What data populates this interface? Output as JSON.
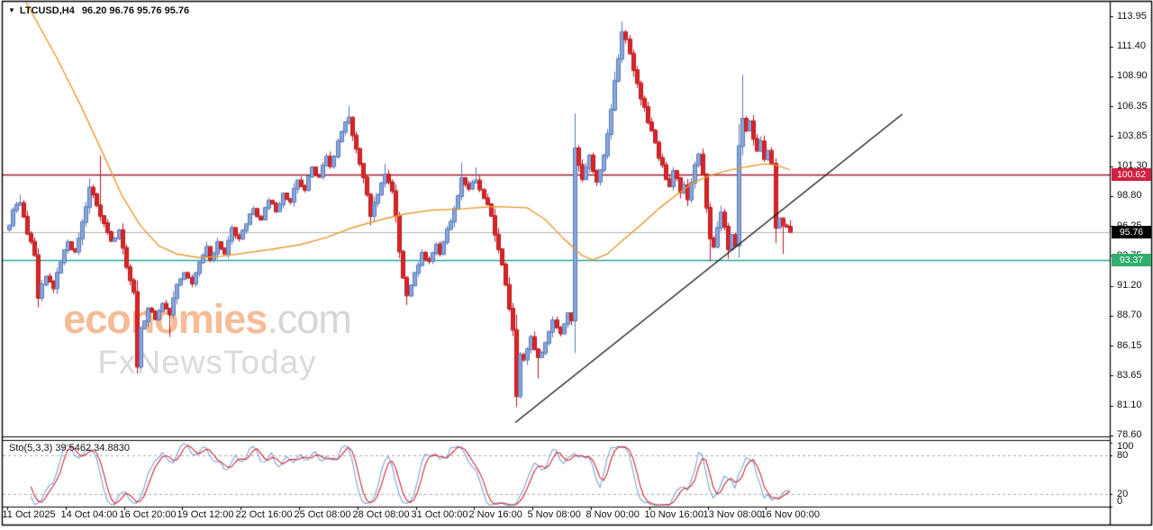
{
  "header": {
    "symbol": "LTCUSD,H4",
    "ohlc": "96.20 96.76 95.76 95.76"
  },
  "watermark": {
    "brand": "economies",
    "domain": ".com",
    "subbrand": "FxNewsToday"
  },
  "chart_data": {
    "type": "candlestick",
    "symbol": "LTCUSD",
    "timeframe": "H4",
    "title": "LTCUSD,H4 96.20 96.76 95.76 95.76",
    "last_bar_ohlc": {
      "open": 96.2,
      "high": 96.76,
      "low": 95.76,
      "close": 95.76
    },
    "bar_count": 215,
    "bars_per_time_tick": 16,
    "price_axis_ticks": [
      113.95,
      111.4,
      108.9,
      106.35,
      103.85,
      101.3,
      98.8,
      96.25,
      93.75,
      91.2,
      88.7,
      86.15,
      83.65,
      81.1,
      78.6
    ],
    "time_axis_ticks": [
      "11 Oct 2025",
      "14 Oct 04:00",
      "16 Oct 20:00",
      "19 Oct 12:00",
      "22 Oct 16:00",
      "25 Oct 08:00",
      "28 Oct 08:00",
      "31 Oct 00:00",
      "2 Nov 16:00",
      "5 Nov 08:00",
      "8 Nov 00:00",
      "10 Nov 16:00",
      "13 Nov 08:00",
      "16 Nov 00:00"
    ],
    "horizontal_levels": [
      {
        "price": 100.62,
        "role": "resistance",
        "line_color": "#9b1b32",
        "badge_color": "#d0223f"
      },
      {
        "price": 95.76,
        "role": "current-price",
        "line_color": "#b5b5b5",
        "badge_color": "#000000"
      },
      {
        "price": 93.37,
        "role": "support",
        "line_color": "#2ba79a",
        "badge_color": "#2fae6e"
      }
    ],
    "trendline": {
      "type": "ascending-support",
      "from_bar": 138.8,
      "from_price": 79.7,
      "to_bar": 244.9,
      "to_price": 105.7,
      "color": "#141414"
    },
    "moving_average": {
      "color": "#e79a33",
      "anchors": [
        [
          4,
          115.5
        ],
        [
          13,
          110.5
        ],
        [
          20,
          106.2
        ],
        [
          26,
          102.2
        ],
        [
          31,
          98.8
        ],
        [
          36,
          96.3
        ],
        [
          41,
          94.6
        ],
        [
          46,
          93.9
        ],
        [
          52,
          93.6
        ],
        [
          58,
          93.7
        ],
        [
          65,
          94.0
        ],
        [
          72,
          94.3
        ],
        [
          80,
          94.7
        ],
        [
          87,
          95.3
        ],
        [
          94,
          96.1
        ],
        [
          102,
          96.8
        ],
        [
          109,
          97.3
        ],
        [
          116,
          97.6
        ],
        [
          124,
          97.7
        ],
        [
          133,
          97.9
        ],
        [
          142,
          97.8
        ],
        [
          147,
          96.8
        ],
        [
          152,
          95.2
        ],
        [
          157,
          93.8
        ],
        [
          160,
          93.4
        ],
        [
          164,
          93.9
        ],
        [
          168,
          95.0
        ],
        [
          173,
          96.3
        ],
        [
          178,
          97.7
        ],
        [
          183,
          98.9
        ],
        [
          188,
          100.0
        ],
        [
          193,
          100.6
        ],
        [
          198,
          101.0
        ],
        [
          203,
          101.3
        ],
        [
          207,
          101.5
        ],
        [
          210,
          101.4
        ],
        [
          214,
          101.0
        ]
      ]
    },
    "candles": {
      "up_color": "#87a7da",
      "up_border": "#5878b8",
      "down_color": "#de2326",
      "down_border": "#b51b20",
      "close_anchors": [
        [
          0,
          96.3
        ],
        [
          1,
          97.6
        ],
        [
          3,
          98.2
        ],
        [
          5,
          95.6
        ],
        [
          7,
          93.8
        ],
        [
          8,
          90.2
        ],
        [
          10,
          92.0
        ],
        [
          12,
          91.0
        ],
        [
          14,
          93.2
        ],
        [
          16,
          94.9
        ],
        [
          18,
          94.1
        ],
        [
          20,
          96.6
        ],
        [
          22,
          99.5
        ],
        [
          24,
          98.0
        ],
        [
          25,
          97.1
        ],
        [
          26,
          96.5
        ],
        [
          28,
          95.0
        ],
        [
          30,
          95.9
        ],
        [
          32,
          92.8
        ],
        [
          34,
          90.7
        ],
        [
          35,
          84.4
        ],
        [
          36,
          87.6
        ],
        [
          38,
          89.3
        ],
        [
          40,
          88.4
        ],
        [
          42,
          89.7
        ],
        [
          44,
          88.8
        ],
        [
          46,
          91.3
        ],
        [
          48,
          92.3
        ],
        [
          50,
          91.4
        ],
        [
          52,
          93.2
        ],
        [
          54,
          94.5
        ],
        [
          55,
          93.4
        ],
        [
          57,
          94.9
        ],
        [
          59,
          93.9
        ],
        [
          61,
          96.1
        ],
        [
          63,
          95.2
        ],
        [
          65,
          96.4
        ],
        [
          67,
          97.7
        ],
        [
          69,
          96.8
        ],
        [
          71,
          98.4
        ],
        [
          73,
          97.5
        ],
        [
          75,
          99.0
        ],
        [
          77,
          98.3
        ],
        [
          79,
          100.1
        ],
        [
          81,
          99.3
        ],
        [
          83,
          101.2
        ],
        [
          85,
          100.4
        ],
        [
          87,
          102.1
        ],
        [
          88,
          101.3
        ],
        [
          90,
          103.4
        ],
        [
          92,
          105.0
        ],
        [
          93,
          105.4
        ],
        [
          94,
          103.9
        ],
        [
          96,
          101.5
        ],
        [
          98,
          98.9
        ],
        [
          99,
          97.1
        ],
        [
          101,
          98.9
        ],
        [
          103,
          100.6
        ],
        [
          105,
          99.2
        ],
        [
          106,
          97.1
        ],
        [
          107,
          94.1
        ],
        [
          108,
          91.9
        ],
        [
          109,
          90.4
        ],
        [
          111,
          92.3
        ],
        [
          113,
          94.0
        ],
        [
          115,
          93.3
        ],
        [
          117,
          94.7
        ],
        [
          118,
          93.9
        ],
        [
          120,
          96.0
        ],
        [
          122,
          97.7
        ],
        [
          124,
          100.3
        ],
        [
          126,
          99.4
        ],
        [
          128,
          100.1
        ],
        [
          130,
          98.6
        ],
        [
          132,
          97.1
        ],
        [
          134,
          94.3
        ],
        [
          136,
          91.3
        ],
        [
          138,
          87.5
        ],
        [
          139,
          81.9
        ],
        [
          140,
          85.4
        ],
        [
          141,
          85.0
        ],
        [
          143,
          86.9
        ],
        [
          145,
          85.2
        ],
        [
          147,
          86.4
        ],
        [
          149,
          88.3
        ],
        [
          151,
          87.2
        ],
        [
          153,
          88.9
        ],
        [
          154,
          88.3
        ],
        [
          155,
          102.8
        ],
        [
          157,
          100.2
        ],
        [
          159,
          102.2
        ],
        [
          161,
          100.0
        ],
        [
          163,
          102.2
        ],
        [
          164,
          104.0
        ],
        [
          166,
          108.5
        ],
        [
          168,
          112.6
        ],
        [
          169,
          112.0
        ],
        [
          170,
          110.8
        ],
        [
          171,
          109.4
        ],
        [
          172,
          108.3
        ],
        [
          173,
          107.0
        ],
        [
          174,
          106.3
        ],
        [
          175,
          105.0
        ],
        [
          176,
          104.3
        ],
        [
          177,
          103.3
        ],
        [
          178,
          102.0
        ],
        [
          179,
          101.4
        ],
        [
          180,
          100.2
        ],
        [
          181,
          99.6
        ],
        [
          182,
          100.9
        ],
        [
          183,
          100.3
        ],
        [
          184,
          99.1
        ],
        [
          185,
          99.7
        ],
        [
          186,
          98.5
        ],
        [
          187,
          99.9
        ],
        [
          188,
          101.4
        ],
        [
          189,
          102.3
        ],
        [
          190,
          100.6
        ],
        [
          191,
          97.8
        ],
        [
          192,
          95.2
        ],
        [
          193,
          94.5
        ],
        [
          194,
          96.1
        ],
        [
          195,
          97.4
        ],
        [
          196,
          96.2
        ],
        [
          197,
          94.3
        ],
        [
          198,
          95.5
        ],
        [
          199,
          94.6
        ],
        [
          200,
          103.0
        ],
        [
          201,
          105.3
        ],
        [
          202,
          104.3
        ],
        [
          203,
          105.1
        ],
        [
          204,
          103.6
        ],
        [
          205,
          102.6
        ],
        [
          206,
          103.4
        ],
        [
          207,
          101.9
        ],
        [
          208,
          102.6
        ],
        [
          209,
          101.5
        ],
        [
          210,
          96.1
        ],
        [
          211,
          96.9
        ],
        [
          212,
          96.3
        ],
        [
          213,
          96.2
        ],
        [
          214,
          95.76
        ]
      ],
      "extremes": [
        {
          "bar": 3,
          "high": 98.9
        },
        {
          "bar": 8,
          "low": 89.4
        },
        {
          "bar": 22,
          "high": 100.3
        },
        {
          "bar": 25,
          "high": 102.2
        },
        {
          "bar": 35,
          "low": 83.9
        },
        {
          "bar": 44,
          "low": 86.9
        },
        {
          "bar": 93,
          "high": 106.4
        },
        {
          "bar": 99,
          "low": 96.3
        },
        {
          "bar": 103,
          "high": 101.5
        },
        {
          "bar": 109,
          "low": 89.6
        },
        {
          "bar": 124,
          "high": 101.6
        },
        {
          "bar": 128,
          "high": 101.2
        },
        {
          "bar": 139,
          "low": 81.0
        },
        {
          "bar": 145,
          "low": 83.4
        },
        {
          "bar": 155,
          "low": 87.9,
          "high": 104.6
        },
        {
          "bar": 168,
          "high": 113.5
        },
        {
          "bar": 192,
          "low": 93.3
        },
        {
          "bar": 197,
          "low": 93.5
        },
        {
          "bar": 201,
          "high": 109.0
        },
        {
          "bar": 210,
          "low": 94.8
        },
        {
          "bar": 212,
          "low": 93.9
        },
        {
          "bar": 214,
          "high": 96.76,
          "low": 95.76
        }
      ]
    },
    "stochastic": {
      "label": "Sto(5,3,3) 39.5462 34.8830",
      "k_period": 5,
      "k_slowing": 3,
      "d_period": 3,
      "k_value": 39.5462,
      "d_value": 34.883,
      "k_color": "#7da4d3",
      "d_color": "#c9293b",
      "levels": [
        80,
        20
      ],
      "axis_ticks": [
        100,
        80,
        20,
        0
      ],
      "level_line_color": "#aaaaaa"
    }
  }
}
